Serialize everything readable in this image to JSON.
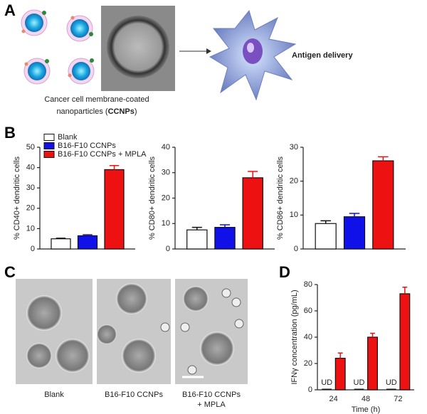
{
  "panel_labels": [
    "A",
    "B",
    "C",
    "D"
  ],
  "panel_a": {
    "caption_line1": "Cancer cell membrane-coated",
    "caption_line2": "nanoparticles (",
    "caption_bold": "CCNPs",
    "caption_end": ")",
    "arrow_label": "Antigen delivery"
  },
  "panel_c": {
    "labels": [
      [
        "Blank"
      ],
      [
        "B16-F10 CCNPs"
      ],
      [
        "B16-F10 CCNPs",
        "+ MPLA"
      ]
    ]
  },
  "chart_data": [
    {
      "type": "bar",
      "y_label": "% CD40+ dendritic cells",
      "ylim": [
        0,
        50
      ],
      "yticks": [
        0,
        10,
        20,
        30,
        40,
        50
      ],
      "legend": "upper left",
      "series": [
        {
          "name": "Blank",
          "color": "#ffffff",
          "values": [
            5
          ],
          "errors": [
            0.3
          ]
        },
        {
          "name": "B16-F10 CCNPs",
          "color": "#1010e8",
          "values": [
            6.5
          ],
          "errors": [
            0.5
          ]
        },
        {
          "name": "B16-F10 CCNPs + MPLA",
          "color": "#ee1111",
          "values": [
            39
          ],
          "errors": [
            2
          ]
        }
      ]
    },
    {
      "type": "bar",
      "y_label": "% CD80+ dendritic cells",
      "ylim": [
        0,
        40
      ],
      "yticks": [
        0,
        10,
        20,
        30,
        40
      ],
      "series": [
        {
          "color": "#ffffff",
          "values": [
            7.5
          ],
          "errors": [
            1
          ]
        },
        {
          "color": "#1010e8",
          "values": [
            8.5
          ],
          "errors": [
            1
          ]
        },
        {
          "color": "#ee1111",
          "values": [
            28
          ],
          "errors": [
            2.5
          ]
        }
      ]
    },
    {
      "type": "bar",
      "y_label": "% CD86+ dendritic cells",
      "ylim": [
        0,
        30
      ],
      "yticks": [
        0,
        10,
        20,
        30
      ],
      "series": [
        {
          "color": "#ffffff",
          "values": [
            7.5
          ],
          "errors": [
            0.8
          ]
        },
        {
          "color": "#1010e8",
          "values": [
            9.5
          ],
          "errors": [
            1
          ]
        },
        {
          "color": "#ee1111",
          "values": [
            26
          ],
          "errors": [
            1.2
          ]
        }
      ]
    },
    {
      "type": "bar",
      "y_label": "IFNγ concentration (pg/mL)",
      "x_label": "Time (h)",
      "categories": [
        "24",
        "48",
        "72"
      ],
      "ylim": [
        0,
        80
      ],
      "yticks": [
        0,
        20,
        40,
        60,
        80
      ],
      "series": [
        {
          "color": "#ee1111",
          "values": [
            null,
            null,
            null
          ],
          "value_labels": [
            "UD",
            "UD",
            "UD"
          ]
        },
        {
          "color": "#ee1111",
          "values": [
            24,
            40,
            73
          ],
          "errors": [
            4,
            3,
            5
          ]
        }
      ]
    }
  ]
}
